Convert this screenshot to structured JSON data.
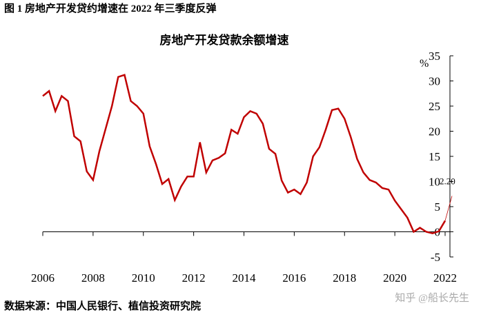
{
  "figure_caption": "图 1 房地产开发贷约增速在 2022 年三季度反弹",
  "source": "数据来源：中国人民银行、植信投资研究院",
  "watermark": "知乎 @船长先生",
  "chart_data": {
    "type": "line",
    "title": "房地产开发贷款余额增速",
    "y_unit": "%",
    "x": [
      2006,
      2006.25,
      2006.5,
      2006.75,
      2007,
      2007.25,
      2007.5,
      2007.75,
      2008,
      2008.25,
      2008.5,
      2008.75,
      2009,
      2009.25,
      2009.5,
      2009.75,
      2010,
      2010.25,
      2010.5,
      2010.75,
      2011,
      2011.25,
      2011.5,
      2011.75,
      2012,
      2012.25,
      2012.5,
      2012.75,
      2013,
      2013.25,
      2013.5,
      2013.75,
      2014,
      2014.25,
      2014.5,
      2014.75,
      2015,
      2015.25,
      2015.5,
      2015.75,
      2016,
      2016.25,
      2016.5,
      2016.75,
      2017,
      2017.25,
      2017.5,
      2017.75,
      2018,
      2018.25,
      2018.5,
      2018.75,
      2019,
      2019.25,
      2019.5,
      2019.75,
      2020,
      2020.25,
      2020.5,
      2020.75,
      2021,
      2021.25,
      2021.5,
      2021.75,
      2022
    ],
    "series": [
      {
        "color": "#c00000",
        "values": [
          27,
          28,
          24,
          27,
          26,
          19,
          18,
          12,
          10.3,
          16,
          20.5,
          25,
          30.8,
          31.2,
          26,
          25,
          23.5,
          17,
          13.5,
          9.5,
          10.5,
          6.3,
          9,
          11,
          11,
          17.8,
          11.8,
          14.2,
          14.7,
          15.6,
          20.3,
          19.5,
          22.8,
          24,
          23.5,
          21.5,
          16.5,
          15.5,
          10.2,
          7.8,
          8.4,
          7.5,
          9.8,
          15,
          16.8,
          20.3,
          24.2,
          24.5,
          22.5,
          18.8,
          14.5,
          11.8,
          10.3,
          9.8,
          8.7,
          8.4,
          6.2,
          4.5,
          2.8,
          0,
          0.8,
          0,
          -0.3,
          0.1,
          2.2
        ]
      }
    ],
    "annotation": "2.20",
    "xlim": [
      2006,
      2022
    ],
    "xticks": [
      2006,
      2008,
      2010,
      2012,
      2014,
      2016,
      2018,
      2020,
      2022
    ],
    "ylim": [
      -5,
      35
    ],
    "yticks": [
      -5,
      0,
      5,
      10,
      15,
      20,
      25,
      30,
      35
    ]
  }
}
